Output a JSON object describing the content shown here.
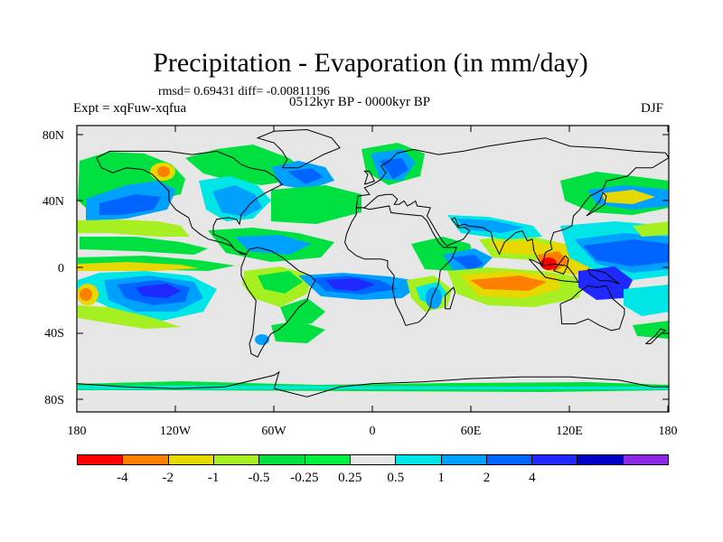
{
  "title": "Precipitation - Evaporation (in mm/day)",
  "stats": "rmsd= 0.69431 diff= -0.00811196",
  "period": "0512kyr BP - 0000kyr BP",
  "experiment": "Expt = xqFuw-xqfua",
  "season": "DJF",
  "lat_ticks": [
    "80N",
    "40N",
    "0",
    "40S",
    "80S"
  ],
  "lon_ticks": [
    "180",
    "120W",
    "60W",
    "0",
    "60E",
    "120E",
    "180"
  ],
  "colorbar": {
    "colors": [
      "#ff0000",
      "#ff8000",
      "#e6d800",
      "#a6f021",
      "#00e040",
      "#00f040",
      "#e6e6e6",
      "#00e6e6",
      "#00a0ff",
      "#0064ff",
      "#1e28ff",
      "#0000c8",
      "#8c28e6"
    ],
    "labels": [
      "-4",
      "-2",
      "-1",
      "-0.5",
      "-0.25",
      "0.25",
      "0.5",
      "1",
      "2",
      "4"
    ]
  },
  "map_colors": {
    "ocean_background": "#e6e6e6",
    "coastline": "#000000",
    "strong_negative": "#ff0000",
    "negative": "#ff8000",
    "weak_negative": "#e6d800",
    "slight_negative": "#a6f021",
    "near_zero_negative": "#00e040",
    "near_zero_positive": "#00e6e6",
    "slight_positive": "#00a0ff",
    "positive": "#0064ff",
    "strong_positive": "#1e28ff"
  }
}
